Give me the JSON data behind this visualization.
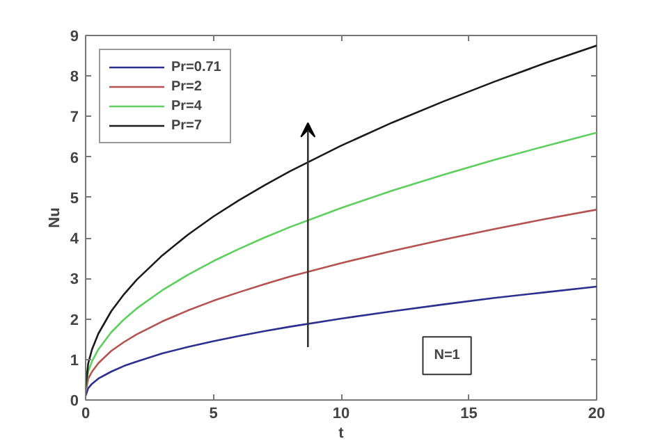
{
  "chart_data": {
    "type": "line",
    "xlabel": "t",
    "ylabel": "Nu",
    "x": [
      0,
      0.1,
      0.25,
      0.5,
      1,
      1.5,
      2,
      3,
      4,
      5,
      6,
      7,
      8,
      10,
      12,
      14,
      16,
      18,
      20
    ],
    "series": [
      {
        "name": "Pr=0.71",
        "color": "#2b2f8f",
        "values": [
          0.1,
          0.29,
          0.4,
          0.53,
          0.7,
          0.84,
          0.95,
          1.15,
          1.31,
          1.45,
          1.58,
          1.7,
          1.81,
          2.01,
          2.19,
          2.36,
          2.52,
          2.66,
          2.8
        ]
      },
      {
        "name": "Pr=2",
        "color": "#b5524f",
        "values": [
          0.2,
          0.52,
          0.7,
          0.91,
          1.21,
          1.43,
          1.62,
          1.94,
          2.21,
          2.45,
          2.66,
          2.86,
          3.05,
          3.38,
          3.68,
          3.96,
          4.22,
          4.47,
          4.7
        ]
      },
      {
        "name": "Pr=4",
        "color": "#5ccf5c",
        "values": [
          0.25,
          0.7,
          0.96,
          1.25,
          1.67,
          1.99,
          2.26,
          2.71,
          3.09,
          3.43,
          3.73,
          4.01,
          4.27,
          4.74,
          5.17,
          5.56,
          5.93,
          6.27,
          6.6
        ]
      },
      {
        "name": "Pr=7",
        "color": "#1a1a1a",
        "values": [
          0.3,
          0.9,
          1.25,
          1.64,
          2.19,
          2.61,
          2.97,
          3.57,
          4.08,
          4.53,
          4.93,
          5.3,
          5.65,
          6.28,
          6.85,
          7.37,
          7.86,
          8.32,
          8.75
        ]
      }
    ],
    "xlim": [
      0,
      20
    ],
    "xticks": [
      0,
      5,
      10,
      15,
      20
    ],
    "ylim": [
      0,
      9
    ],
    "yticks": [
      0,
      1,
      2,
      3,
      4,
      5,
      6,
      7,
      8,
      9
    ],
    "annotations": [
      "N=1"
    ],
    "grid": false,
    "legend": "top left",
    "line_style": "solid",
    "marker": "none"
  }
}
